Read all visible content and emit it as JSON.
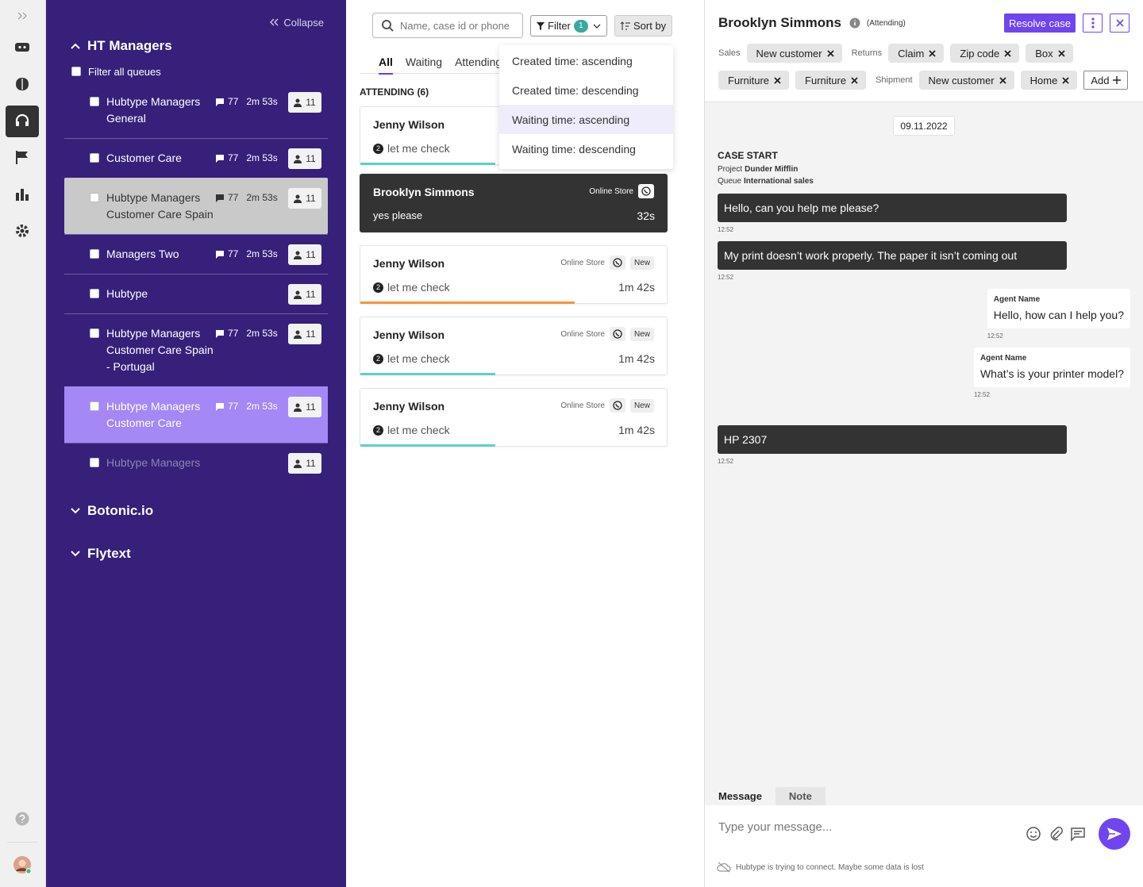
{
  "sidebar": {
    "collapse": "Collapse",
    "groups": [
      {
        "title": "HT Managers",
        "expanded": true,
        "filter_all": "Filter all queues",
        "queues": [
          {
            "name": "Hubtype Managers General",
            "messages": 77,
            "wait": "2m 53s",
            "agents": 11
          },
          {
            "name": "Customer Care",
            "messages": 77,
            "wait": "2m 53s",
            "agents": 11
          },
          {
            "name": "Hubtype Managers Customer Care Spain",
            "messages": 77,
            "wait": "2m 53s",
            "agents": 11,
            "state": "hovered"
          },
          {
            "name": "Managers Two",
            "messages": 77,
            "wait": "2m 53s",
            "agents": 11
          },
          {
            "name": "Hubtype",
            "agents": 11
          },
          {
            "name": "Hubtype Managers Customer Care Spain - Portugal",
            "messages": 77,
            "wait": "2m 53s",
            "agents": 11
          },
          {
            "name": "Hubtype Managers Customer Care",
            "messages": 77,
            "wait": "2m 53s",
            "agents": 11,
            "state": "selected"
          },
          {
            "name": "Hubtype Managers",
            "agents": 11,
            "state": "disabled"
          }
        ]
      },
      {
        "title": "Botonic.io",
        "expanded": false
      },
      {
        "title": "Flytext",
        "expanded": false
      }
    ]
  },
  "list": {
    "search_placeholder": "Name, case id or phone",
    "filter": "Filter",
    "filter_count": 1,
    "sort": "Sort by",
    "tabs": [
      "All",
      "Waiting",
      "Attending"
    ],
    "active_tab": 0,
    "section": "ATTENDING (6)",
    "sort_options": [
      "Created time: ascending",
      "Created time: descending",
      "Waiting time: ascending",
      "Waiting time: descending"
    ],
    "sort_highlight": 2,
    "cases": [
      {
        "name": "Jenny Wilson",
        "badge": 2,
        "preview": "let me check",
        "progress": 44,
        "bar_color": "#5dd0c8"
      },
      {
        "name": "Brooklyn Simmons",
        "channel": "Online Store",
        "preview": "yes please",
        "time": "32s",
        "dark": true
      },
      {
        "name": "Jenny Wilson",
        "channel": "Online Store",
        "tag": "New",
        "badge": 2,
        "preview": "let me check",
        "time": "1m 42s",
        "progress": 70,
        "bar_color": "#f7923a"
      },
      {
        "name": "Jenny Wilson",
        "channel": "Online Store",
        "tag": "New",
        "badge": 2,
        "preview": "let me check",
        "time": "1m 42s",
        "progress": 44,
        "bar_color": "#5dd0c8"
      },
      {
        "name": "Jenny Wilson",
        "channel": "Online Store",
        "tag": "New",
        "badge": 2,
        "preview": "let me check",
        "time": "1m 42s",
        "progress": 44,
        "bar_color": "#5dd0c8"
      }
    ]
  },
  "case": {
    "name": "Brooklyn Simmons",
    "status": "(Attending)",
    "resolve": "Resolve case",
    "tags": [
      {
        "label": "Sales",
        "items": [
          "New customer"
        ]
      },
      {
        "label": "Returns",
        "items": [
          "Claim",
          "Zip code",
          "Box",
          "Furniture",
          "Furniture"
        ]
      },
      {
        "label": "Shipment",
        "items": [
          "New customer",
          "Home"
        ]
      }
    ],
    "add": "Add",
    "date": "09.11.2022",
    "case_start": {
      "title": "CASE START",
      "fields": [
        {
          "label": "Project",
          "value": "Dunder Mifflin"
        },
        {
          "label": "Queue",
          "value": "International sales"
        }
      ]
    },
    "messages": [
      {
        "from": "user",
        "text": "Hello, can you help me please?",
        "time": "12:52"
      },
      {
        "from": "user",
        "text": "My print doesn’t work properly. The paper it isn’t coming out",
        "time": "12:52"
      },
      {
        "from": "agent",
        "agent": "Agent Name",
        "text": "Hello, how can I help you?",
        "time": "12:52"
      },
      {
        "from": "agent",
        "agent": "Agent Name",
        "text": "What’s is your printer model?",
        "time": "12:52"
      },
      {
        "from": "user",
        "text": "HP 2307",
        "time": "12:52"
      }
    ],
    "composer": {
      "tabs": [
        "Message",
        "Note"
      ],
      "active_tab": 0,
      "placeholder": "Type your message...",
      "notice": "Hubtype is trying to connect. Maybe some data is lost"
    }
  }
}
